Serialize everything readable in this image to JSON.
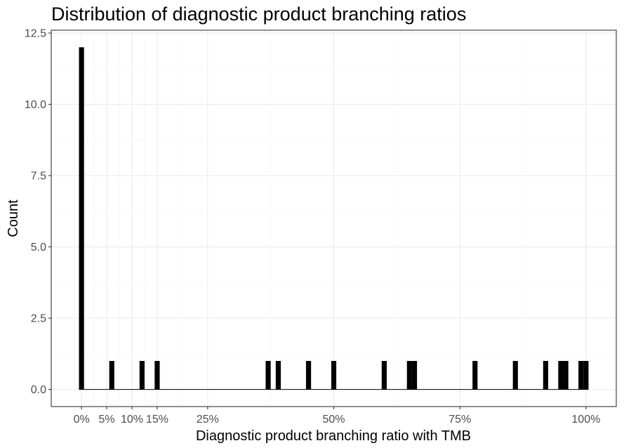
{
  "chart_data": {
    "type": "bar",
    "title": "Distribution of diagnostic product branching ratios",
    "xlabel": "Diagnostic product branching ratio with TMB",
    "ylabel": "Count",
    "xlim": [
      -0.06,
      1.06
    ],
    "ylim": [
      -0.6,
      12.6
    ],
    "x_ticks": [
      {
        "value": 0,
        "label": "0%"
      },
      {
        "value": 0.05,
        "label": "5%"
      },
      {
        "value": 0.1,
        "label": "10%"
      },
      {
        "value": 0.15,
        "label": "15%"
      },
      {
        "value": 0.25,
        "label": "25%"
      },
      {
        "value": 0.5,
        "label": "50%"
      },
      {
        "value": 0.75,
        "label": "75%"
      },
      {
        "value": 1.0,
        "label": "100%"
      }
    ],
    "y_ticks": [
      {
        "value": 0,
        "label": "0.0"
      },
      {
        "value": 2.5,
        "label": "2.5"
      },
      {
        "value": 5,
        "label": "5.0"
      },
      {
        "value": 7.5,
        "label": "7.5"
      },
      {
        "value": 10,
        "label": "10.0"
      },
      {
        "value": 12.5,
        "label": "12.5"
      }
    ],
    "bin_width": 0.01,
    "bin_range": [
      -0.005,
      1.005
    ],
    "bins": [
      {
        "x": 0.0,
        "count": 12
      },
      {
        "x": 0.06,
        "count": 1
      },
      {
        "x": 0.12,
        "count": 1
      },
      {
        "x": 0.15,
        "count": 1
      },
      {
        "x": 0.37,
        "count": 1
      },
      {
        "x": 0.39,
        "count": 1
      },
      {
        "x": 0.45,
        "count": 1
      },
      {
        "x": 0.5,
        "count": 1
      },
      {
        "x": 0.6,
        "count": 1
      },
      {
        "x": 0.65,
        "count": 1
      },
      {
        "x": 0.66,
        "count": 1
      },
      {
        "x": 0.78,
        "count": 1
      },
      {
        "x": 0.86,
        "count": 1
      },
      {
        "x": 0.92,
        "count": 1
      },
      {
        "x": 0.95,
        "count": 1
      },
      {
        "x": 0.96,
        "count": 1
      },
      {
        "x": 0.99,
        "count": 1
      },
      {
        "x": 1.0,
        "count": 1
      }
    ],
    "bar_color": "#000000",
    "grid": true,
    "legend": "none"
  }
}
